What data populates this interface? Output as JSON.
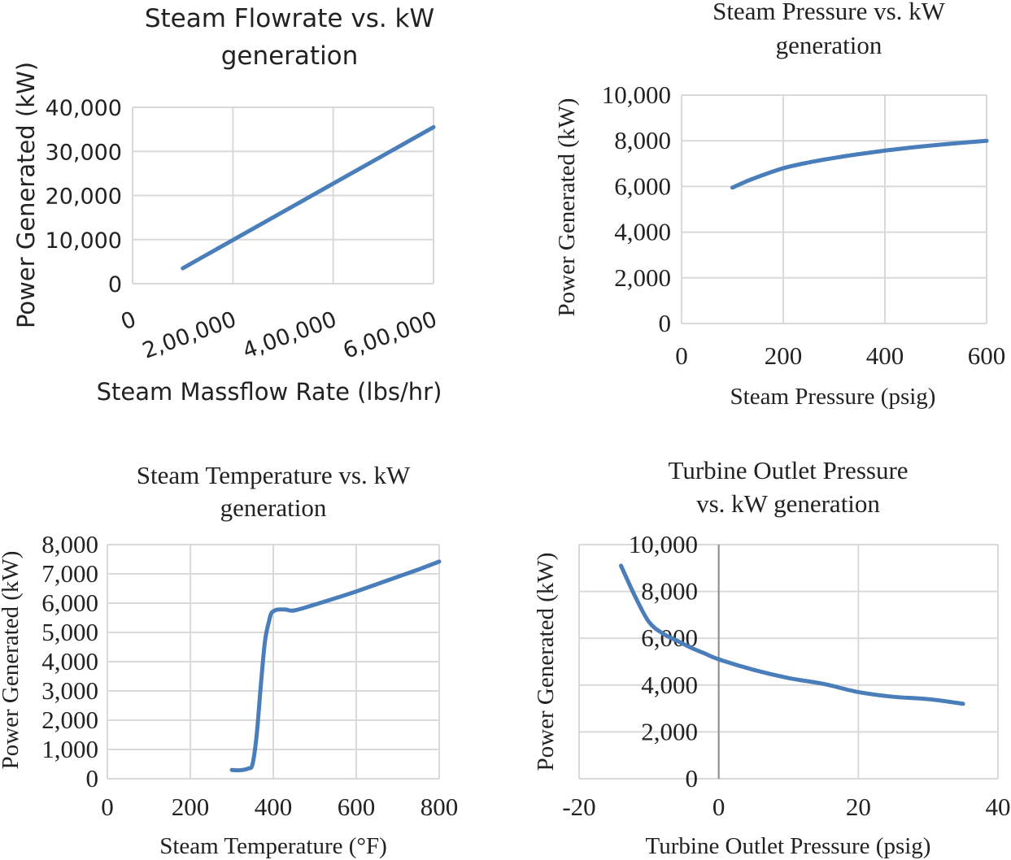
{
  "chart_data": [
    {
      "type": "line",
      "title_lines": [
        "Steam Flowrate vs. kW",
        "generation"
      ],
      "xlabel": "Steam Massflow Rate (lbs/hr)",
      "ylabel": "Power Generated (kW)",
      "xlim": [
        0,
        600000
      ],
      "ylim": [
        0,
        40000
      ],
      "x_ticks": [
        0,
        200000,
        400000,
        600000
      ],
      "x_tick_labels": [
        "0",
        "2,00,000",
        "4,00,000",
        "6,00,000"
      ],
      "y_ticks": [
        0,
        10000,
        20000,
        30000,
        40000
      ],
      "y_tick_labels": [
        "0",
        "10,000",
        "20,000",
        "30,000",
        "40,000"
      ],
      "grid": true,
      "series": [
        {
          "x": [
            100000,
            200000,
            300000,
            400000,
            500000,
            600000
          ],
          "y": [
            3500,
            9900,
            16300,
            22700,
            29100,
            35500
          ]
        }
      ]
    },
    {
      "type": "line",
      "title_lines": [
        "Steam Pressure vs. kW",
        "generation"
      ],
      "xlabel": "Steam Pressure (psig)",
      "ylabel": "Power Generated (kW)",
      "xlim": [
        0,
        600
      ],
      "ylim": [
        0,
        10000
      ],
      "x_ticks": [
        0,
        200,
        400,
        600
      ],
      "x_tick_labels": [
        "0",
        "200",
        "400",
        "600"
      ],
      "y_ticks": [
        0,
        2000,
        4000,
        6000,
        8000,
        10000
      ],
      "y_tick_labels": [
        "0",
        "2,000",
        "4,000",
        "6,000",
        "8,000",
        "10,000"
      ],
      "grid": true,
      "series": [
        {
          "x": [
            100,
            125,
            150,
            200,
            250,
            300,
            350,
            400,
            450,
            500,
            550,
            600
          ],
          "y": [
            5950,
            6200,
            6420,
            6800,
            7050,
            7250,
            7420,
            7570,
            7700,
            7810,
            7910,
            8000
          ]
        }
      ]
    },
    {
      "type": "line",
      "title_lines": [
        "Steam Temperature vs. kW",
        "generation"
      ],
      "xlabel": "Steam Temperature (°F)",
      "ylabel": "Power Generated (kW)",
      "xlim": [
        0,
        800
      ],
      "ylim": [
        0,
        8000
      ],
      "x_ticks": [
        0,
        200,
        400,
        600,
        800
      ],
      "x_tick_labels": [
        "0",
        "200",
        "400",
        "600",
        "800"
      ],
      "y_ticks": [
        0,
        1000,
        2000,
        3000,
        4000,
        5000,
        6000,
        7000,
        8000
      ],
      "y_tick_labels": [
        "0",
        "1,000",
        "2,000",
        "3,000",
        "4,000",
        "5,000",
        "6,000",
        "7,000",
        "8,000"
      ],
      "grid": true,
      "series": [
        {
          "x": [
            300,
            320,
            340,
            350,
            360,
            370,
            380,
            390,
            395,
            400,
            410,
            430,
            450,
            500,
            550,
            600,
            650,
            700,
            750,
            800
          ],
          "y": [
            300,
            290,
            350,
            500,
            1500,
            3200,
            4700,
            5400,
            5650,
            5720,
            5780,
            5780,
            5750,
            5950,
            6170,
            6400,
            6650,
            6900,
            7150,
            7420
          ]
        }
      ]
    },
    {
      "type": "line",
      "title_lines": [
        "Turbine Outlet Pressure",
        "vs. kW generation"
      ],
      "xlabel": "Turbine Outlet Pressure (psig)",
      "ylabel": "Power Generated (kW)",
      "xlim": [
        -20,
        40
      ],
      "ylim": [
        0,
        10000
      ],
      "x_ticks": [
        -20,
        0,
        20,
        40
      ],
      "x_tick_labels": [
        "-20",
        "0",
        "20",
        "40"
      ],
      "y_ticks": [
        0,
        2000,
        4000,
        6000,
        8000,
        10000
      ],
      "y_tick_labels": [
        "0",
        "2,000",
        "4,000",
        "6,000",
        "8,000",
        "10,000"
      ],
      "grid": true,
      "series": [
        {
          "x": [
            -14,
            -12,
            -10,
            -8,
            -6,
            -4,
            -2,
            0,
            5,
            10,
            15,
            20,
            25,
            30,
            35
          ],
          "y": [
            9100,
            7800,
            6700,
            6200,
            5900,
            5600,
            5350,
            5100,
            4650,
            4300,
            4050,
            3700,
            3500,
            3400,
            3200
          ]
        }
      ]
    }
  ]
}
